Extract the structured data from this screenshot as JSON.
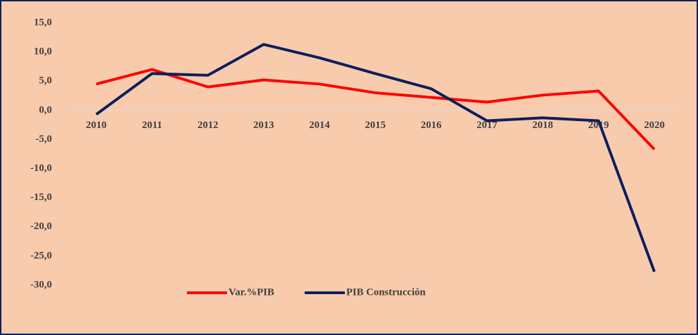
{
  "chart_data": {
    "type": "line",
    "categories": [
      "2010",
      "2011",
      "2012",
      "2013",
      "2014",
      "2015",
      "2016",
      "2017",
      "2018",
      "2019",
      "2020"
    ],
    "series": [
      {
        "name": "Var.%PIB",
        "color": "#ff0000",
        "values": [
          4.5,
          7.0,
          4.0,
          5.2,
          4.5,
          3.0,
          2.2,
          1.4,
          2.6,
          3.3,
          -6.7
        ]
      },
      {
        "name": "PIB Construcción",
        "color": "#0d1f5c",
        "values": [
          -0.7,
          6.3,
          6.0,
          11.3,
          9.0,
          6.3,
          3.7,
          -1.8,
          -1.3,
          -1.8,
          -27.7
        ]
      }
    ],
    "ylim": [
      -30,
      15
    ],
    "yticks": [
      {
        "value": 15,
        "label": "15,0"
      },
      {
        "value": 10,
        "label": "10,0"
      },
      {
        "value": 5,
        "label": "5,0"
      },
      {
        "value": 0,
        "label": "0,0"
      },
      {
        "value": -5,
        "label": "-5,0"
      },
      {
        "value": -10,
        "label": "-10,0"
      },
      {
        "value": -15,
        "label": "-15,0"
      },
      {
        "value": -20,
        "label": "-20,0"
      },
      {
        "value": -25,
        "label": "-25,0"
      },
      {
        "value": -30,
        "label": "-30,0"
      }
    ],
    "legend": "bottom"
  }
}
